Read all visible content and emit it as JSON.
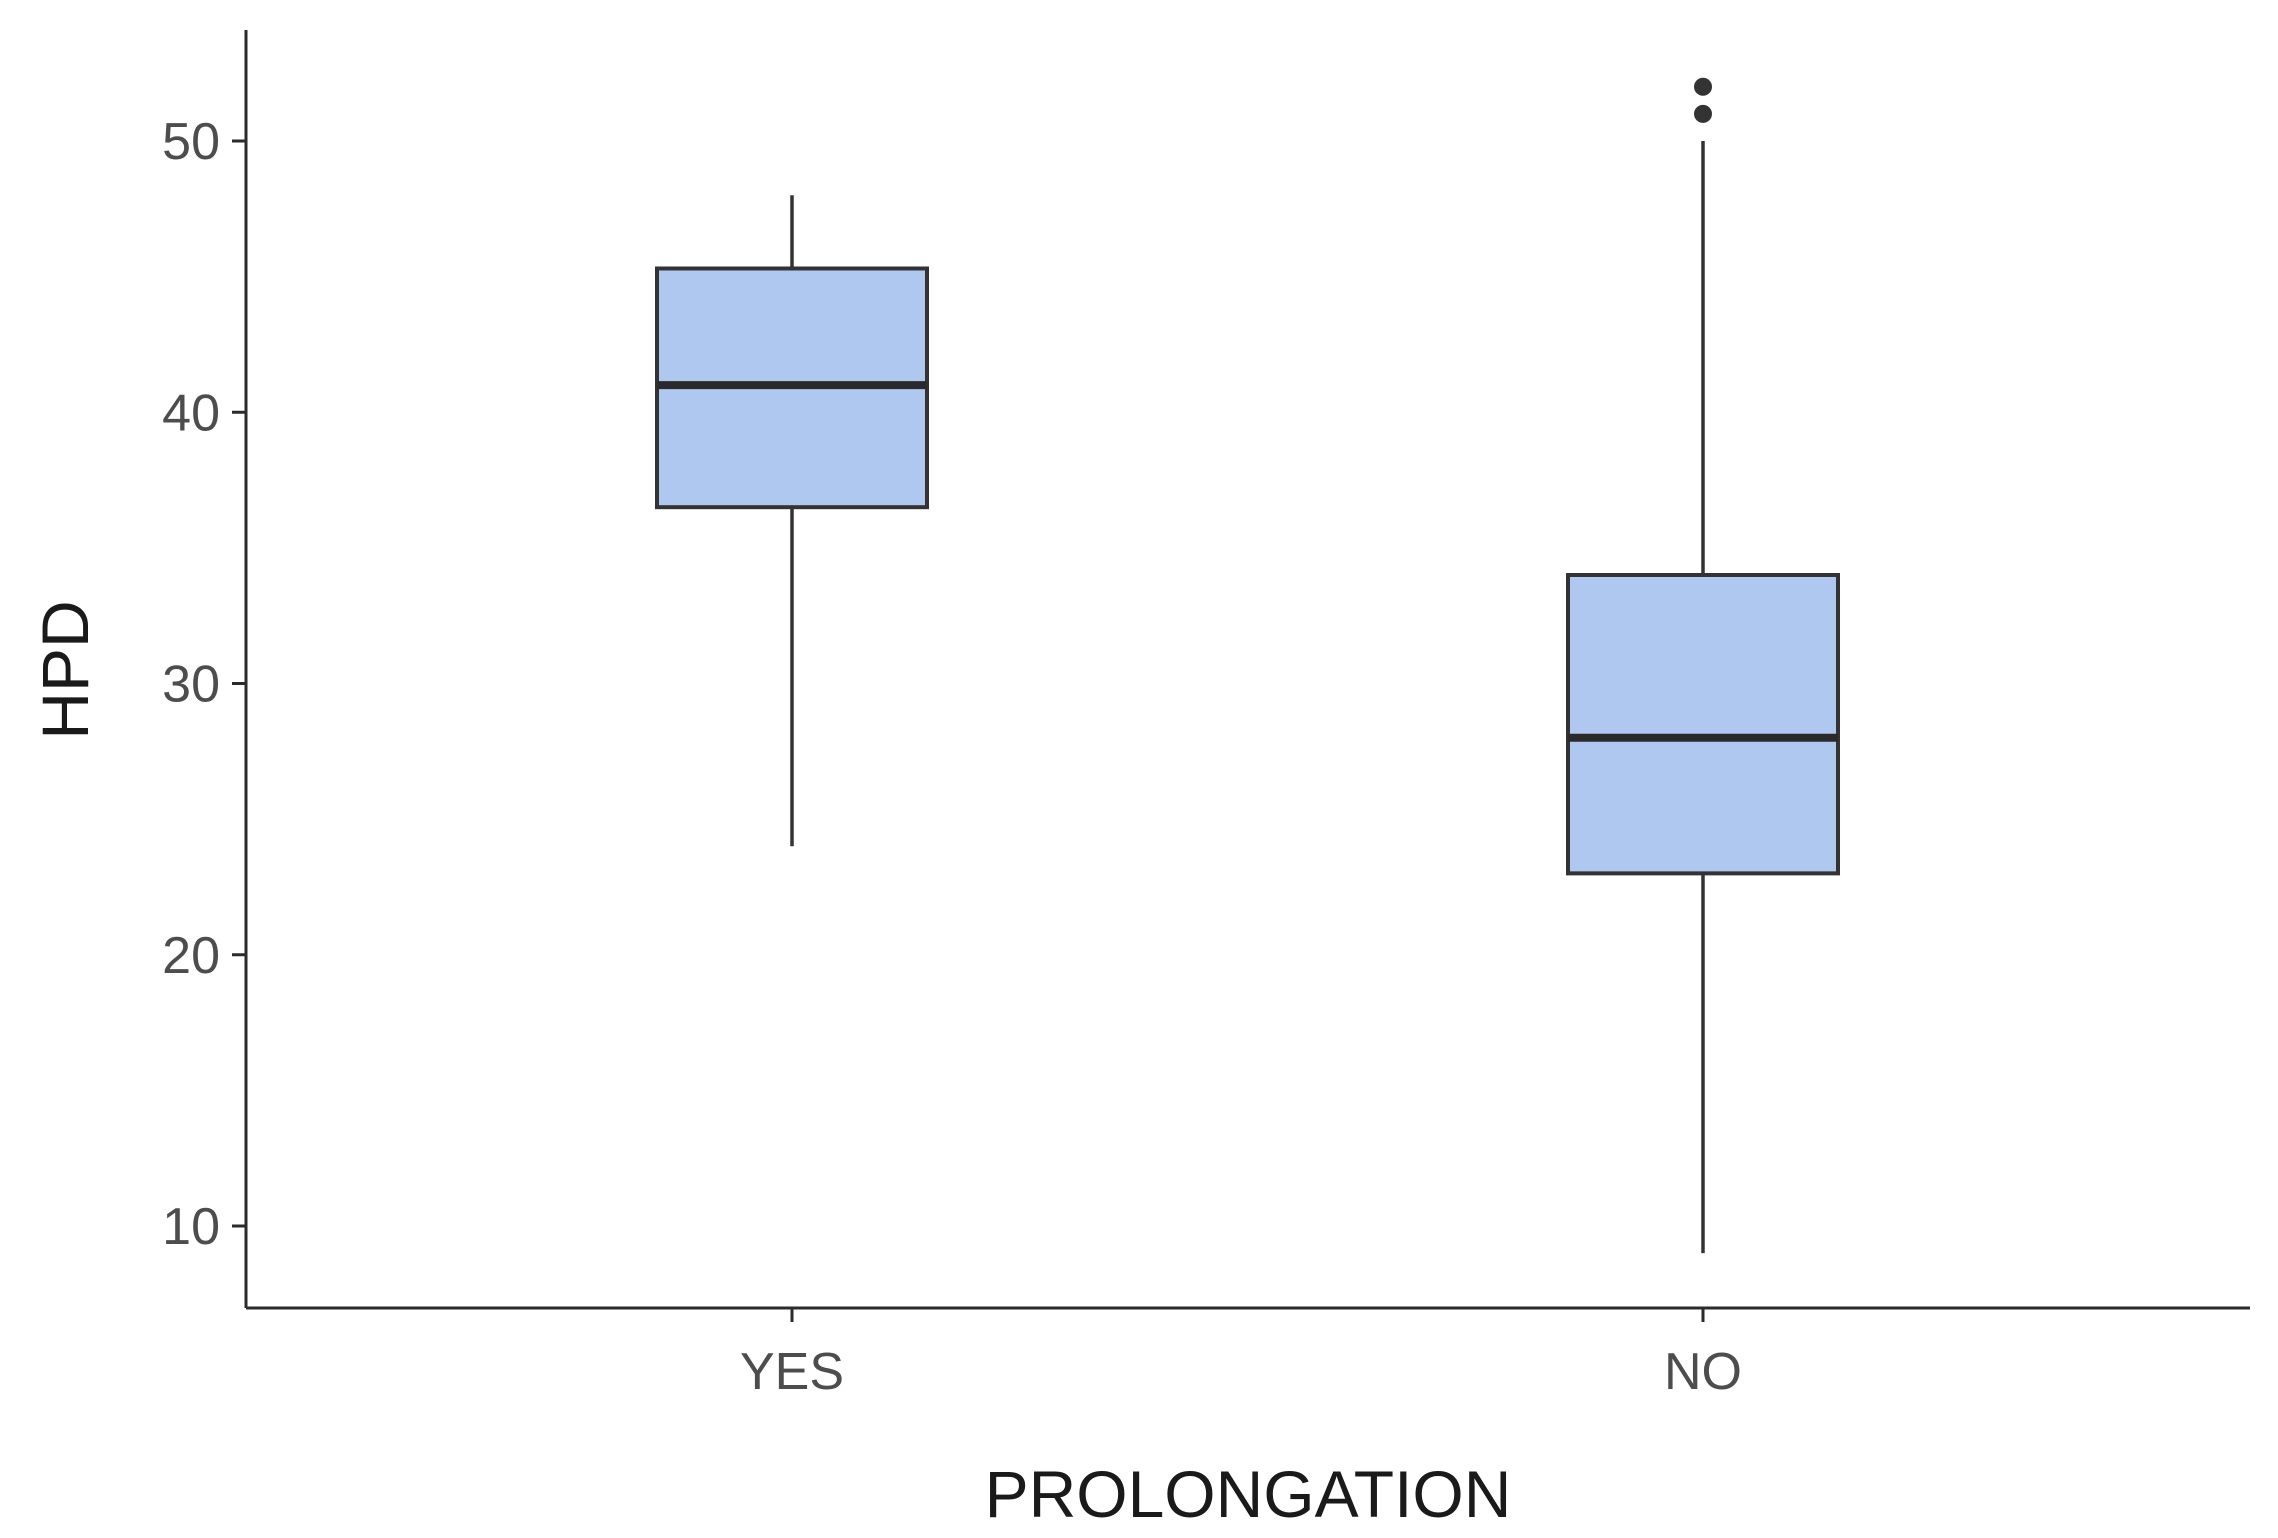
{
  "chart_data": {
    "type": "box",
    "xlabel": "PROLONGATION",
    "ylabel": "HPD",
    "categories": [
      "YES",
      "NO"
    ],
    "yticks": [
      "10",
      "20",
      "30",
      "40",
      "50"
    ],
    "ylim": [
      7.0,
      54.0
    ],
    "grid": false,
    "legend": "none",
    "box_fill": "#aec8f0",
    "box_stroke": "#333333",
    "boxes": [
      {
        "category": "YES",
        "whisker_low": 24,
        "q1": 36.5,
        "median": 41,
        "q3": 45.3,
        "whisker_high": 48,
        "outliers": []
      },
      {
        "category": "NO",
        "whisker_low": 9,
        "q1": 23,
        "median": 28,
        "q3": 34,
        "whisker_high": 50,
        "outliers": [
          51,
          52
        ]
      }
    ]
  }
}
